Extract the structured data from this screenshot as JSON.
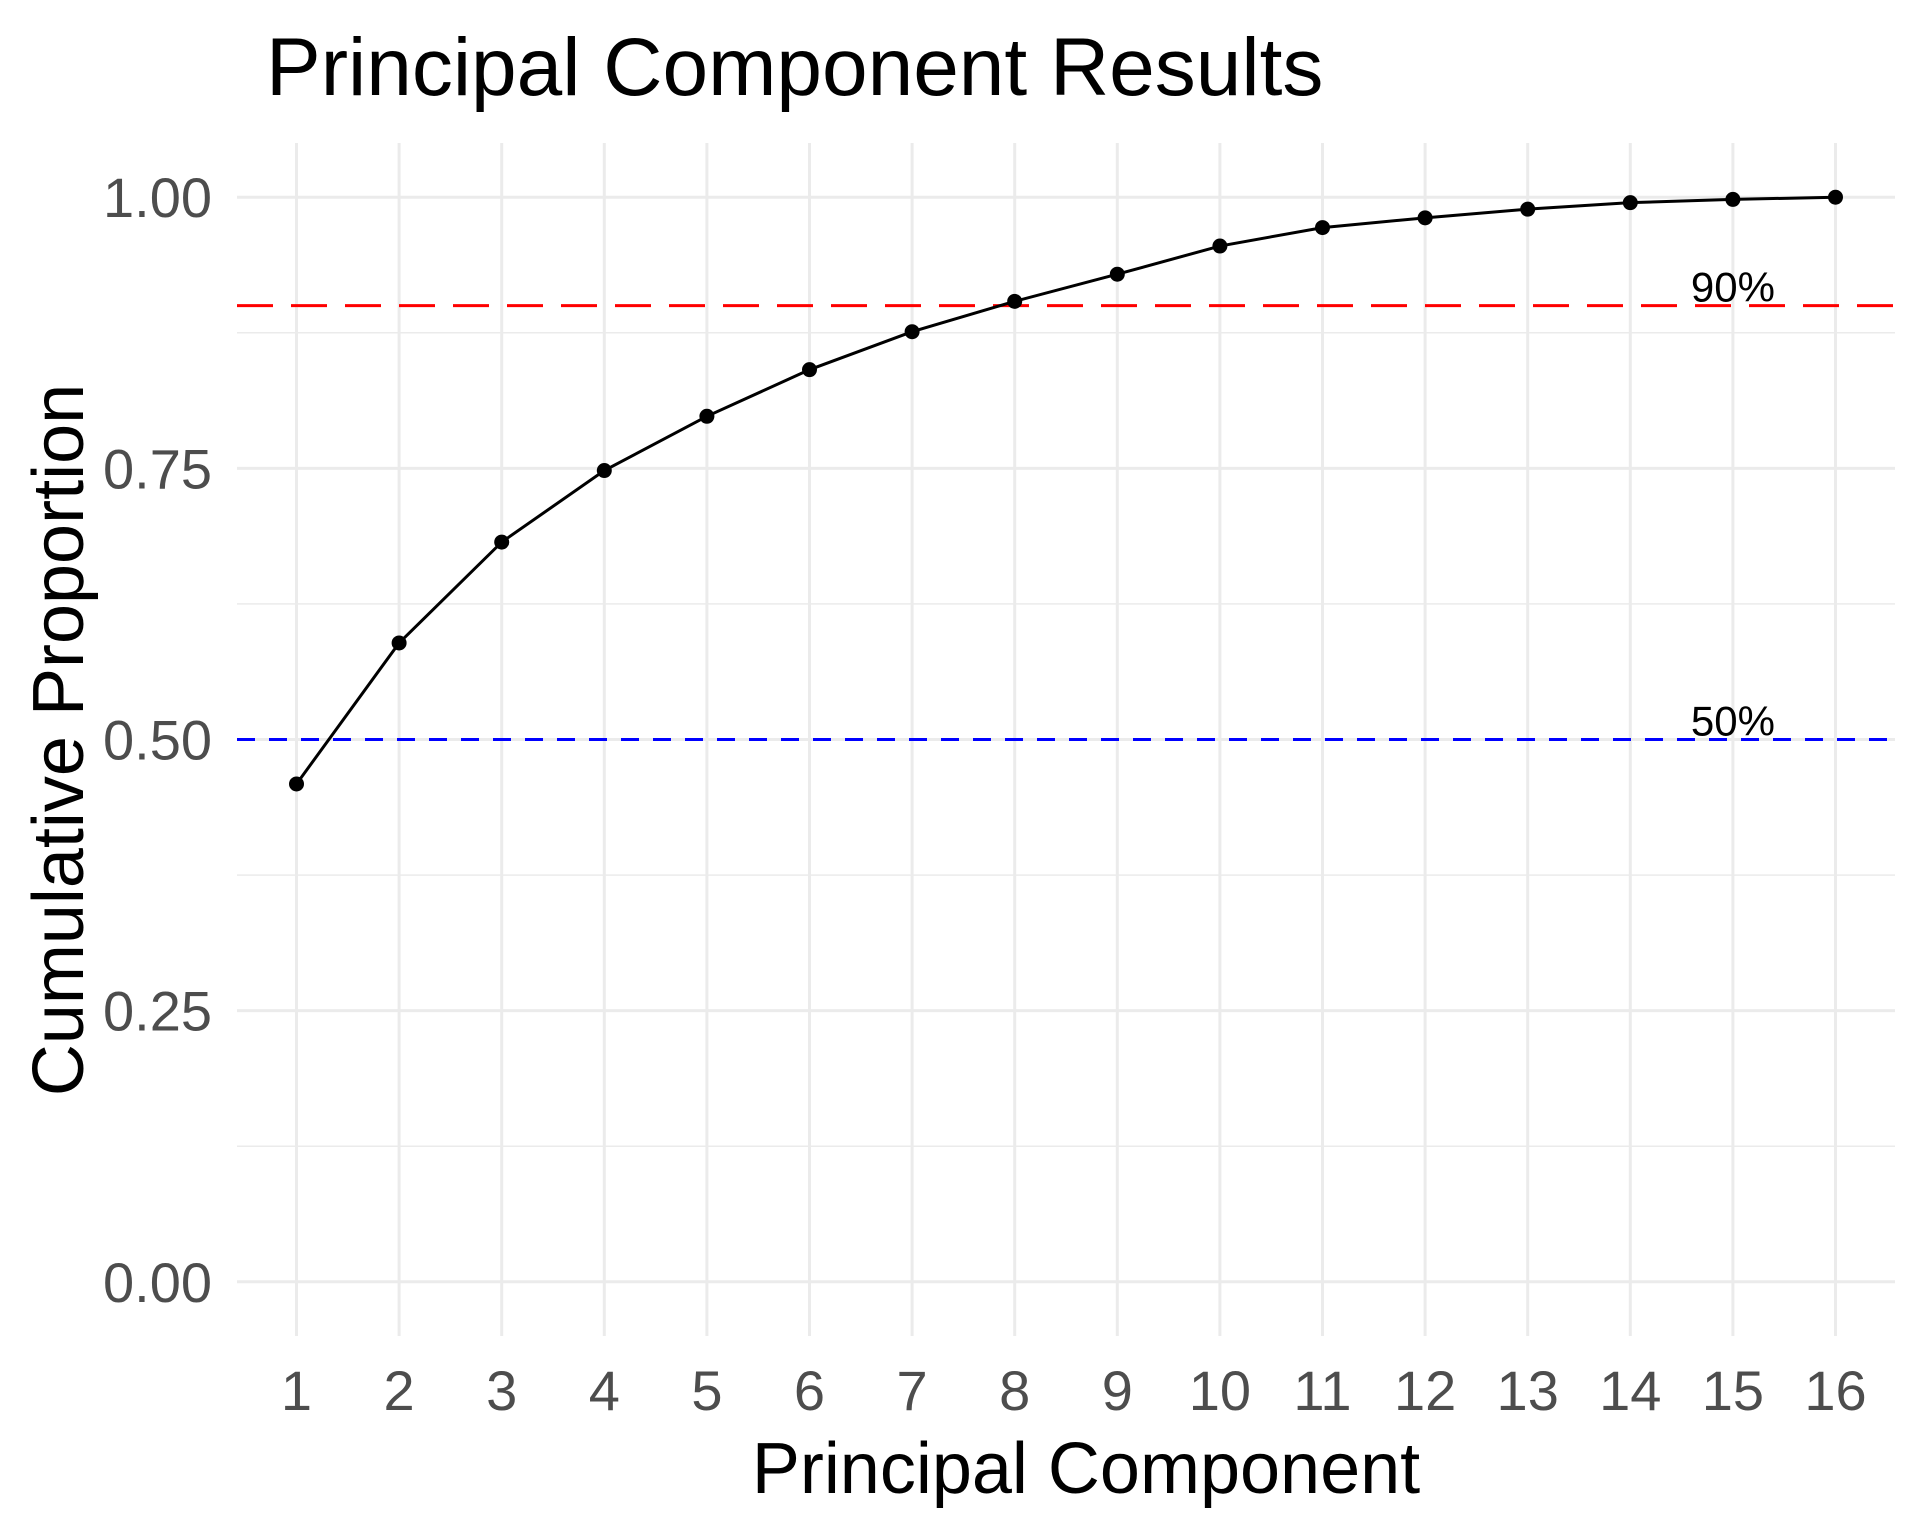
{
  "chart_data": {
    "type": "line",
    "title": "Principal Component Results",
    "xlabel": "Principal Component",
    "ylabel": "Cumulative Proportion",
    "x": [
      1,
      2,
      3,
      4,
      5,
      6,
      7,
      8,
      9,
      10,
      11,
      12,
      13,
      14,
      15,
      16
    ],
    "series": [
      {
        "values": [
          0.459,
          0.589,
          0.682,
          0.748,
          0.798,
          0.841,
          0.876,
          0.904,
          0.929,
          0.955,
          0.972,
          0.981,
          0.989,
          0.995,
          0.998,
          1.0
        ],
        "color": "#000000"
      }
    ],
    "xlim": [
      0.42,
      16.58
    ],
    "ylim": [
      -0.05,
      1.05
    ],
    "x_ticks": [
      "1",
      "2",
      "3",
      "4",
      "5",
      "6",
      "7",
      "8",
      "9",
      "10",
      "11",
      "12",
      "13",
      "14",
      "15",
      "16"
    ],
    "y_ticks": [
      {
        "value": 0.0,
        "label": "0.00"
      },
      {
        "value": 0.25,
        "label": "0.25"
      },
      {
        "value": 0.5,
        "label": "0.50"
      },
      {
        "value": 0.75,
        "label": "0.75"
      },
      {
        "value": 1.0,
        "label": "1.00"
      }
    ],
    "y_minor_ticks": [
      0.125,
      0.375,
      0.625,
      0.875
    ],
    "reference_lines": [
      {
        "y": 0.9,
        "label": "90%",
        "label_x": 15,
        "color": "#ff0000",
        "style": "longdash"
      },
      {
        "y": 0.5,
        "label": "50%",
        "label_x": 15,
        "color": "#0000ff",
        "style": "dashed"
      }
    ],
    "grid": true,
    "legend": "none"
  }
}
